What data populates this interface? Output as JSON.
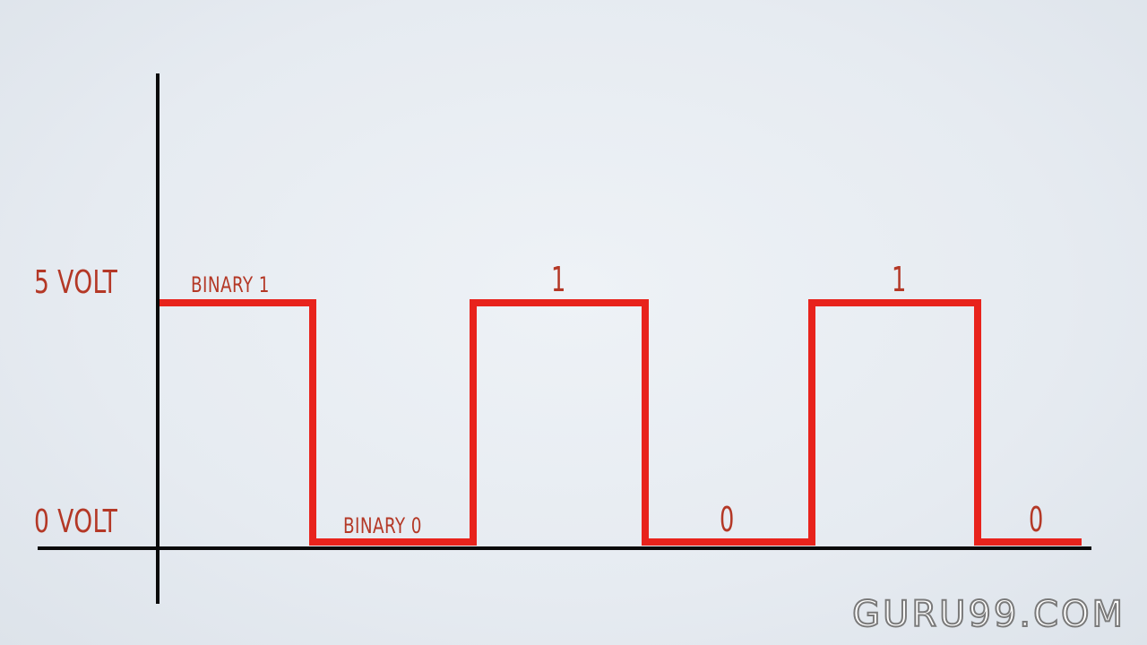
{
  "colors": {
    "signal": "#e8231c",
    "label": "#b43826",
    "axis": "#0a0a0a",
    "background": "#e6ebf1"
  },
  "levels": {
    "high_label": "5 VOLT",
    "low_label": "0 VOLT"
  },
  "bits": [
    {
      "value": 1,
      "label": "BINARY 1"
    },
    {
      "value": 0,
      "label": "BINARY 0"
    },
    {
      "value": 1,
      "label": "1"
    },
    {
      "value": 0,
      "label": "0"
    },
    {
      "value": 1,
      "label": "1"
    },
    {
      "value": 0,
      "label": "0"
    }
  ],
  "watermark": "GURU99.COM"
}
